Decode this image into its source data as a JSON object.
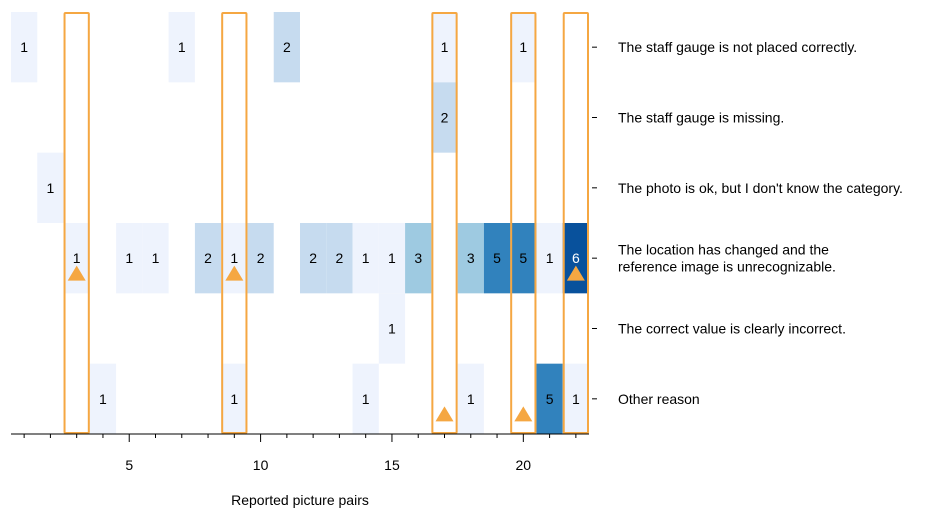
{
  "chart_data": {
    "type": "heatmap",
    "xlabel": "Reported picture pairs",
    "x_ticks": [
      5,
      10,
      15,
      20
    ],
    "x_range": [
      0.5,
      22.5
    ],
    "rows": [
      [
        "The staff gauge is not placed correctly."
      ],
      [
        "The staff gauge is missing."
      ],
      [
        "The photo is ok, but I don't know the category."
      ],
      [
        "The location has changed and the",
        "reference image is unrecognizable."
      ],
      [
        "The correct value is clearly incorrect."
      ],
      [
        "Other reason"
      ]
    ],
    "cells": [
      {
        "x": 1,
        "row": 0,
        "value": 1
      },
      {
        "x": 7,
        "row": 0,
        "value": 1
      },
      {
        "x": 11,
        "row": 0,
        "value": 2
      },
      {
        "x": 17,
        "row": 0,
        "value": 1
      },
      {
        "x": 20,
        "row": 0,
        "value": 1
      },
      {
        "x": 17,
        "row": 1,
        "value": 2
      },
      {
        "x": 2,
        "row": 2,
        "value": 1
      },
      {
        "x": 3,
        "row": 3,
        "value": 1
      },
      {
        "x": 5,
        "row": 3,
        "value": 1
      },
      {
        "x": 6,
        "row": 3,
        "value": 1
      },
      {
        "x": 8,
        "row": 3,
        "value": 2
      },
      {
        "x": 9,
        "row": 3,
        "value": 1
      },
      {
        "x": 10,
        "row": 3,
        "value": 2
      },
      {
        "x": 12,
        "row": 3,
        "value": 2
      },
      {
        "x": 13,
        "row": 3,
        "value": 2
      },
      {
        "x": 14,
        "row": 3,
        "value": 1
      },
      {
        "x": 15,
        "row": 3,
        "value": 1
      },
      {
        "x": 16,
        "row": 3,
        "value": 3
      },
      {
        "x": 18,
        "row": 3,
        "value": 3
      },
      {
        "x": 19,
        "row": 3,
        "value": 5
      },
      {
        "x": 20,
        "row": 3,
        "value": 5
      },
      {
        "x": 21,
        "row": 3,
        "value": 1
      },
      {
        "x": 22,
        "row": 3,
        "value": 6
      },
      {
        "x": 15,
        "row": 4,
        "value": 1
      },
      {
        "x": 4,
        "row": 5,
        "value": 1
      },
      {
        "x": 9,
        "row": 5,
        "value": 1
      },
      {
        "x": 14,
        "row": 5,
        "value": 1
      },
      {
        "x": 18,
        "row": 5,
        "value": 1
      },
      {
        "x": 21,
        "row": 5,
        "value": 5
      },
      {
        "x": 22,
        "row": 5,
        "value": 1
      }
    ],
    "highlighted_columns": [
      3,
      9,
      17,
      20,
      22
    ],
    "triangle_markers": [
      {
        "x": 3,
        "row": 3
      },
      {
        "x": 9,
        "row": 3
      },
      {
        "x": 22,
        "row": 3
      },
      {
        "x": 17,
        "row": 5
      },
      {
        "x": 20,
        "row": 5
      }
    ],
    "colors": {
      "scale": [
        "#eef3fd",
        "#c6dbef",
        "#9ecae1",
        "#6baed6",
        "#3182bd",
        "#08519c"
      ],
      "highlight": "#f5a742",
      "axis": "#000000"
    }
  }
}
